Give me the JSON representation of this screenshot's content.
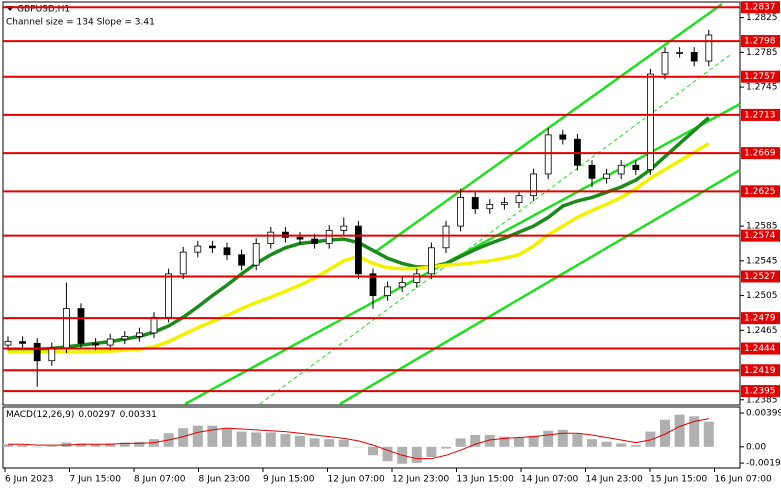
{
  "chart_data": {
    "type": "candlestick",
    "title": "GBPUSD,H1",
    "subtitle": "Channel size = 134 Slope = 3.41",
    "open": [
      1.2448,
      1.2452,
      1.245,
      1.243,
      1.2445,
      1.249,
      1.245,
      1.2448,
      1.2455,
      1.2458,
      1.2462,
      1.248,
      1.253,
      1.2555,
      1.2562,
      1.256,
      1.2552,
      1.254,
      1.2565,
      1.2578,
      1.2572,
      1.257,
      1.2565,
      1.258,
      1.2585,
      1.253,
      1.2505,
      1.2515,
      1.252,
      1.253,
      1.256,
      1.2585,
      1.2618,
      1.2605,
      1.261,
      1.2612,
      1.262,
      1.2645,
      1.269,
      1.2685,
      1.2655,
      1.264,
      1.2645,
      1.2655,
      1.265,
      1.276,
      1.2785,
      1.2785,
      1.2775
    ],
    "high": [
      1.2458,
      1.2458,
      1.2456,
      1.2451,
      1.252,
      1.2496,
      1.2456,
      1.2461,
      1.2464,
      1.2468,
      1.2486,
      1.2536,
      1.2561,
      1.2568,
      1.2568,
      1.2566,
      1.2558,
      1.2571,
      1.2584,
      1.2584,
      1.2578,
      1.2576,
      1.2586,
      1.2595,
      1.2591,
      1.2536,
      1.2521,
      1.2526,
      1.2536,
      1.2566,
      1.2591,
      1.2628,
      1.2624,
      1.2616,
      1.2618,
      1.2626,
      1.2651,
      1.2698,
      1.2696,
      1.2691,
      1.2661,
      1.2651,
      1.2661,
      1.2661,
      1.2766,
      1.2791,
      1.2791,
      1.2791,
      1.2811
    ],
    "low": [
      1.2442,
      1.2444,
      1.24,
      1.2424,
      1.2439,
      1.2444,
      1.2442,
      1.2442,
      1.2449,
      1.2452,
      1.2456,
      1.2474,
      1.2524,
      1.2549,
      1.2554,
      1.2546,
      1.2534,
      1.2534,
      1.2559,
      1.2566,
      1.2564,
      1.2559,
      1.2559,
      1.2574,
      1.2524,
      1.249,
      1.2499,
      1.2509,
      1.2514,
      1.2524,
      1.2554,
      1.2579,
      1.2599,
      1.2599,
      1.2604,
      1.2606,
      1.2614,
      1.2639,
      1.2679,
      1.2649,
      1.263,
      1.2634,
      1.2639,
      1.2644,
      1.2644,
      1.2754,
      1.2779,
      1.2769,
      1.2769
    ],
    "close": [
      1.2452,
      1.245,
      1.243,
      1.2445,
      1.249,
      1.245,
      1.2448,
      1.2455,
      1.2458,
      1.2462,
      1.248,
      1.253,
      1.2555,
      1.2562,
      1.256,
      1.2552,
      1.254,
      1.2565,
      1.2578,
      1.2572,
      1.257,
      1.2565,
      1.258,
      1.2585,
      1.253,
      1.2505,
      1.2515,
      1.252,
      1.253,
      1.256,
      1.2585,
      1.2618,
      1.2605,
      1.261,
      1.2612,
      1.262,
      1.2645,
      1.269,
      1.2685,
      1.2655,
      1.264,
      1.2645,
      1.2655,
      1.265,
      1.276,
      1.2785,
      1.2785,
      1.2775,
      1.2805
    ],
    "up_color": "#ffffff",
    "down_color": "#000000",
    "moving_averages": [
      {
        "color": "#1a8a1a",
        "values": [
          1.2443,
          1.2443,
          1.2443,
          1.2444,
          1.2446,
          1.2448,
          1.245,
          1.2452,
          1.2455,
          1.2458,
          1.2463,
          1.247,
          1.248,
          1.2492,
          1.2505,
          1.2517,
          1.253,
          1.2542,
          1.2552,
          1.256,
          1.2565,
          1.2567,
          1.2569,
          1.257,
          1.2566,
          1.2557,
          1.2548,
          1.2542,
          1.2538,
          1.2538,
          1.2542,
          1.255,
          1.2558,
          1.2565,
          1.2571,
          1.2578,
          1.2585,
          1.2595,
          1.2608,
          1.2614,
          1.2618,
          1.2624,
          1.263,
          1.2638,
          1.265,
          1.2665,
          1.268,
          1.2695,
          1.271
        ]
      },
      {
        "color": "#f2f200",
        "values": [
          1.244,
          1.244,
          1.244,
          1.244,
          1.244,
          1.244,
          1.244,
          1.2441,
          1.2442,
          1.2443,
          1.2446,
          1.2452,
          1.246,
          1.2468,
          1.2475,
          1.2482,
          1.249,
          1.2497,
          1.2503,
          1.251,
          1.2517,
          1.2525,
          1.2535,
          1.2545,
          1.255,
          1.2542,
          1.2537,
          1.2536,
          1.2536,
          1.2538,
          1.254,
          1.2541,
          1.2543,
          1.2545,
          1.2548,
          1.2552,
          1.2562,
          1.2575,
          1.2585,
          1.2595,
          1.2603,
          1.261,
          1.2618,
          1.2628,
          1.264,
          1.265,
          1.266,
          1.267,
          1.268
        ]
      }
    ],
    "levels": [
      1.2837,
      1.2798,
      1.2757,
      1.2713,
      1.2669,
      1.2625,
      1.2574,
      1.2527,
      1.2479,
      1.2444,
      1.2419,
      1.2395
    ],
    "level_color": "#e00000",
    "ylim": [
      1.2379,
      1.2843
    ],
    "yticks": [
      1.2825,
      1.2785,
      1.2745,
      1.2585,
      1.2545,
      1.2505,
      1.2465,
      1.2385
    ],
    "x_labels": [
      "6 Jun 2023",
      "7 Jun 15:00",
      "8 Jun 07:00",
      "8 Jun 23:00",
      "9 Jun 15:00",
      "12 Jun 07:00",
      "12 Jun 23:00",
      "13 Jun 15:00",
      "14 Jun 07:00",
      "14 Jun 23:00",
      "15 Jun 15:00",
      "16 Jun 07:00"
    ],
    "macd": {
      "title": "MACD(12,26,9)",
      "histogram_color": "#b0b0b0",
      "signal_color": "#e00000",
      "histogram": [
        0.0003,
        0.0002,
        0,
        0.0001,
        0.0005,
        0.0004,
        0.0003,
        0.0004,
        0.0005,
        0.0006,
        0.0009,
        0.0016,
        0.0022,
        0.0025,
        0.0025,
        0.0022,
        0.0018,
        0.0017,
        0.0017,
        0.0015,
        0.0013,
        0.001,
        0.0009,
        0.0008,
        0,
        -0.001,
        -0.0017,
        -0.002,
        -0.0019,
        -0.0012,
        -0.0002,
        0.001,
        0.0014,
        0.0014,
        0.0012,
        0.0011,
        0.0013,
        0.0019,
        0.002,
        0.0015,
        0.0009,
        0.0006,
        0.0004,
        0.0002,
        0.0018,
        0.0032,
        0.0038,
        0.0036,
        0.00297
      ],
      "signal": [
        0.0003,
        0.0003,
        0.0002,
        0.0002,
        0.0002,
        0.0003,
        0.0003,
        0.0003,
        0.0004,
        0.0004,
        0.0005,
        0.0008,
        0.0012,
        0.0017,
        0.002,
        0.0022,
        0.0021,
        0.002,
        0.0019,
        0.0018,
        0.0016,
        0.0014,
        0.0012,
        0.001,
        0.0007,
        0.0002,
        -0.0004,
        -0.001,
        -0.0014,
        -0.0014,
        -0.001,
        -0.0004,
        0.0003,
        0.0008,
        0.001,
        0.0011,
        0.0012,
        0.0014,
        0.0016,
        0.0016,
        0.0014,
        0.0011,
        0.0008,
        0.0005,
        0.0008,
        0.0015,
        0.0024,
        0.003,
        0.00331
      ],
      "ylim": [
        -0.0025,
        0.0047
      ],
      "yticks": [
        0.00399,
        {
          "value": 0,
          "label": "0.00"
        },
        -0.00192
      ]
    }
  }
}
